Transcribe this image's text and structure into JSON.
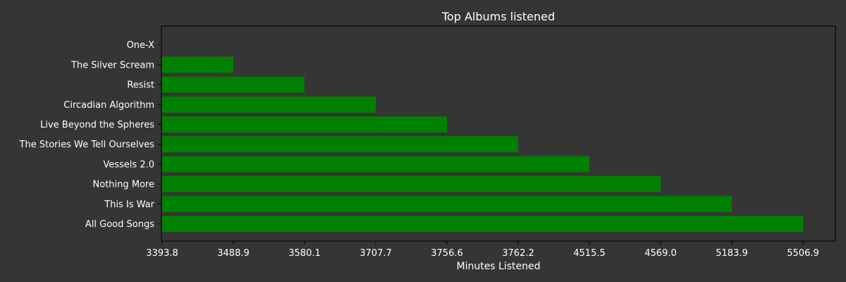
{
  "chart_data": {
    "type": "bar",
    "orientation": "horizontal",
    "title": "Top Albums listened",
    "xlabel": "Minutes Listened",
    "ylabel": "",
    "categories": [
      "All Good Songs",
      "This Is War",
      "Nothing More",
      "Vessels 2.0",
      "The Stories We Tell Ourselves",
      "Live Beyond the Spheres",
      "Circadian Algorithm",
      "Resist",
      "The Silver Scream",
      "One-X"
    ],
    "values": [
      5506.9,
      5183.9,
      4569.0,
      4515.5,
      3762.2,
      3756.6,
      3707.7,
      3580.1,
      3488.9,
      3393.8
    ],
    "x_tick_labels": [
      "3393.8",
      "3488.9",
      "3580.1",
      "3707.7",
      "3756.6",
      "3762.2",
      "4515.5",
      "4569.0",
      "5183.9",
      "5506.9"
    ],
    "grid": false,
    "colors": {
      "background": "#353535",
      "bar": "#008000",
      "text": "#ffffff",
      "axis": "#000000"
    }
  }
}
